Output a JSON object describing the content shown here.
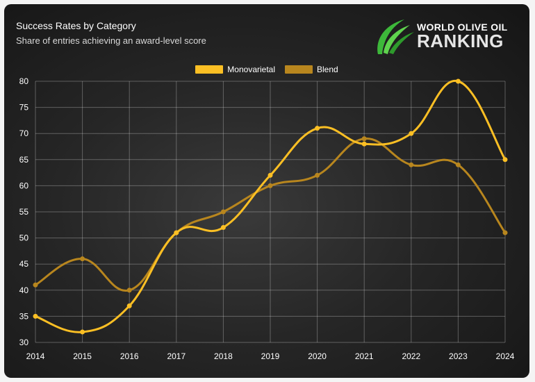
{
  "header": {
    "title": "Success Rates by Category",
    "subtitle": "Share of entries achieving an award-level score"
  },
  "logo": {
    "line1": "WORLD OLIVE OIL",
    "line2": "RANKING",
    "icon": "olive-swoosh-icon",
    "color": "#3db83a"
  },
  "chart_data": {
    "type": "line",
    "x": [
      2014,
      2015,
      2016,
      2017,
      2018,
      2019,
      2020,
      2021,
      2022,
      2023,
      2024
    ],
    "series": [
      {
        "name": "Monovarietal",
        "color": "#fbbf24",
        "values": [
          35,
          32,
          37,
          51,
          52,
          62,
          71,
          68,
          70,
          80,
          65
        ]
      },
      {
        "name": "Blend",
        "color": "#b8861e",
        "values": [
          41,
          46,
          40,
          51,
          55,
          60,
          62,
          69,
          64,
          64,
          51
        ]
      }
    ],
    "ylim": [
      30,
      80
    ],
    "yticks": [
      30,
      35,
      40,
      45,
      50,
      55,
      60,
      65,
      70,
      75,
      80
    ],
    "xlabel": "",
    "ylabel": "",
    "grid": true,
    "legend": "top-center",
    "smooth": true
  }
}
